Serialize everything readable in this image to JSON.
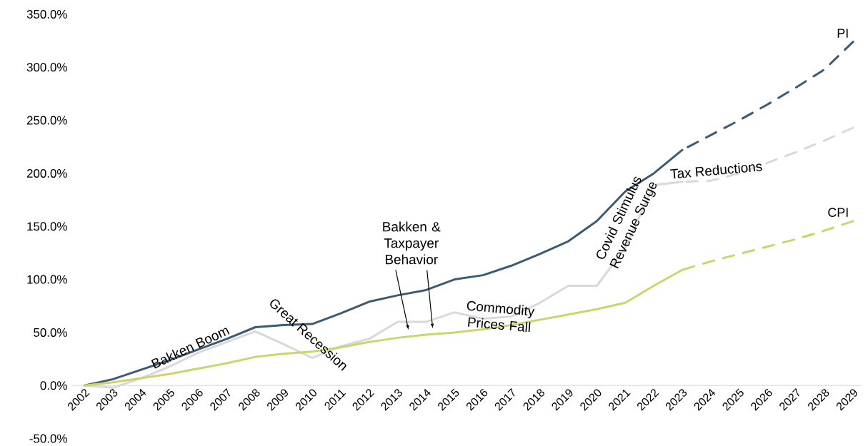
{
  "chart_data": {
    "type": "line",
    "categories": [
      "2002",
      "2003",
      "2004",
      "2005",
      "2006",
      "2007",
      "2008",
      "2009",
      "2010",
      "2011",
      "2012",
      "2013",
      "2014",
      "2015",
      "2016",
      "2017",
      "2018",
      "2019",
      "2020",
      "2021",
      "2022",
      "2023",
      "2024",
      "2025",
      "2026",
      "2027",
      "2028",
      "2029"
    ],
    "series": [
      {
        "color": "#3d5a73",
        "line_style": "solid",
        "values": [
          0,
          6,
          15,
          24,
          34,
          44,
          55,
          57,
          58,
          68,
          79,
          85,
          90,
          100,
          104,
          113,
          124,
          136,
          155,
          183,
          200,
          222,
          null,
          null,
          null,
          null,
          null,
          null
        ]
      },
      {
        "name": "PI",
        "color": "#3d5a73",
        "line_style": "dashed",
        "values": [
          null,
          null,
          null,
          null,
          null,
          null,
          null,
          null,
          null,
          null,
          null,
          null,
          null,
          null,
          null,
          null,
          null,
          null,
          null,
          null,
          null,
          222,
          236,
          250,
          265,
          281,
          298,
          324
        ]
      },
      {
        "color": "#d9d9d9",
        "line_style": "solid",
        "values": [
          0,
          -2,
          7,
          18,
          31,
          41,
          51,
          39,
          26,
          37,
          44,
          60,
          60,
          69,
          63,
          65,
          78,
          94,
          94,
          130,
          189,
          192,
          null,
          null,
          null,
          null,
          null,
          null
        ]
      },
      {
        "color": "#d9d9d9",
        "line_style": "dashed",
        "values": [
          null,
          null,
          null,
          null,
          null,
          null,
          null,
          null,
          null,
          null,
          null,
          null,
          null,
          null,
          null,
          null,
          null,
          null,
          null,
          null,
          null,
          192,
          193,
          200,
          210,
          220,
          231,
          243
        ]
      },
      {
        "color": "#cdd46e",
        "line_style": "solid",
        "values": [
          0,
          3,
          7,
          11,
          16,
          21,
          27,
          30,
          32,
          36,
          41,
          45,
          48,
          50,
          53,
          57,
          62,
          67,
          72,
          78,
          94,
          109,
          null,
          null,
          null,
          null,
          null,
          null
        ]
      },
      {
        "name": "CPI",
        "color": "#cdd46e",
        "line_style": "dashed",
        "values": [
          null,
          null,
          null,
          null,
          null,
          null,
          null,
          null,
          null,
          null,
          null,
          null,
          null,
          null,
          null,
          null,
          null,
          null,
          null,
          null,
          null,
          109,
          117,
          124,
          131,
          138,
          146,
          155
        ]
      }
    ],
    "ylim": [
      -50,
      350
    ],
    "yticks": [
      {
        "value": -50,
        "label": "-50.0%"
      },
      {
        "value": 0,
        "label": "0.0%"
      },
      {
        "value": 50,
        "label": "50.0%"
      },
      {
        "value": 100,
        "label": "100.0%"
      },
      {
        "value": 150,
        "label": "150.0%"
      },
      {
        "value": 200,
        "label": "200.0%"
      },
      {
        "value": 250,
        "label": "250.0%"
      },
      {
        "value": 300,
        "label": "300.0%"
      },
      {
        "value": 350,
        "label": "350.0%"
      }
    ],
    "annotations": [
      "Bakken Boom",
      "Great Recession",
      "Bakken & Taxpayer Behavior",
      "Commodity Prices Fall",
      "Covid Stimulus Revenue Surge",
      "Tax Reductions"
    ]
  }
}
